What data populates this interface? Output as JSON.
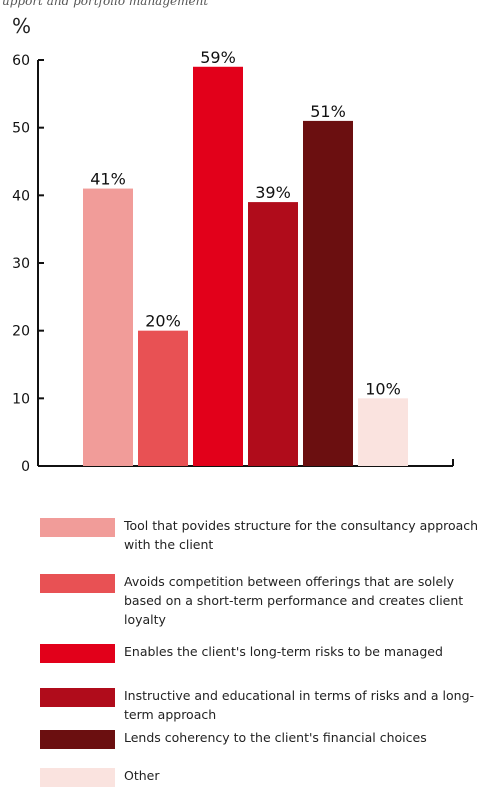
{
  "chart_data": {
    "type": "bar",
    "top_caption": "upport and portfolio management",
    "ylabel": "%",
    "ylim": [
      0,
      60
    ],
    "yticks": [
      0,
      10,
      20,
      30,
      40,
      50,
      60
    ],
    "categories": [
      "Tool that povides structure for the consultancy approach with the client",
      "Avoids competition between offerings that are solely  based on a short-term performance and creates client loyalty",
      "Enables the client's long-term risks to be managed",
      "Instructive and educational in terms of risks and a long-term approach",
      "Lends coherency to the client's financial choices",
      "Other"
    ],
    "values": [
      41,
      20,
      59,
      39,
      51,
      10
    ],
    "data_labels": [
      "41%",
      "20%",
      "59%",
      "39%",
      "51%",
      "10%"
    ],
    "colors": [
      "#f19c99",
      "#e85154",
      "#e2001a",
      "#b00c1b",
      "#6b0f10",
      "#fae3df"
    ],
    "grid": false,
    "legend_position": "bottom"
  }
}
